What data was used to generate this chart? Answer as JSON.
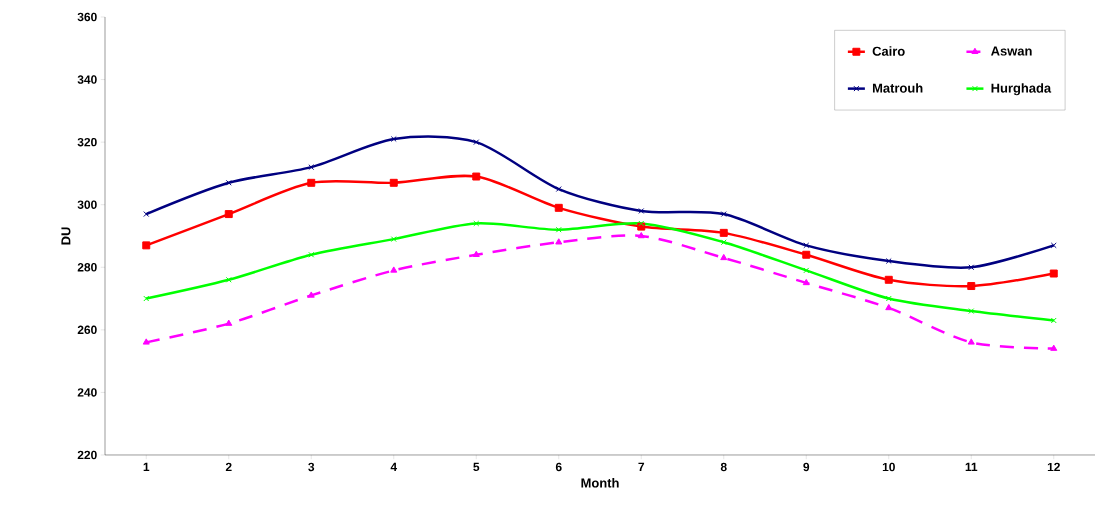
{
  "chart_data": {
    "type": "line",
    "xlabel": "Month",
    "ylabel": "DU",
    "x": [
      1,
      2,
      3,
      4,
      5,
      6,
      7,
      8,
      9,
      10,
      11,
      12
    ],
    "xlim": [
      0.5,
      12.5
    ],
    "xticks": [
      1,
      2,
      3,
      4,
      5,
      6,
      7,
      8,
      9,
      10,
      11,
      12
    ],
    "ylim": [
      220,
      360
    ],
    "yticks": [
      220,
      240,
      260,
      280,
      300,
      320,
      340,
      360
    ],
    "grid": false,
    "legend": "top right",
    "series": [
      {
        "name": "Cairo",
        "color": "#ff0000",
        "marker": "square",
        "line_style": "solid",
        "values": [
          287,
          297,
          307,
          307,
          309,
          299,
          293,
          291,
          284,
          276,
          274,
          278
        ]
      },
      {
        "name": "Aswan",
        "color": "#ff00ff",
        "marker": "triangle",
        "line_style": "dashed",
        "values": [
          256,
          262,
          271,
          279,
          284,
          288,
          290,
          283,
          275,
          267,
          256,
          254
        ]
      },
      {
        "name": "Matrouh",
        "color": "#000080",
        "marker": "cross",
        "line_style": "solid",
        "values": [
          297,
          307,
          312,
          321,
          320,
          305,
          298,
          297,
          287,
          282,
          280,
          287
        ]
      },
      {
        "name": "Hurghada",
        "color": "#00ff00",
        "marker": "cross",
        "line_style": "solid",
        "values": [
          270,
          276,
          284,
          289,
          294,
          292,
          294,
          288,
          279,
          270,
          266,
          263
        ]
      }
    ]
  }
}
